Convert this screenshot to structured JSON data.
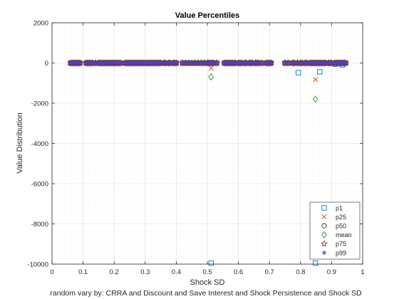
{
  "chart_data": {
    "type": "scatter",
    "title": "Value Percentiles",
    "xlabel": "Shock SD",
    "ylabel": "Value Distribution",
    "caption": "random vary by: CRRA and Discount and Save Interest and Shock Persistence and Shock SD",
    "xlim": [
      0,
      1
    ],
    "ylim": [
      -10000,
      2000
    ],
    "xticks": [
      0,
      0.1,
      0.2,
      0.3,
      0.4,
      0.5,
      0.6,
      0.7,
      0.8,
      0.9,
      1
    ],
    "xtick_labels": [
      "0",
      "0.1",
      "0.2",
      "0.3",
      "0.4",
      "0.5",
      "0.6",
      "0.7",
      "0.8",
      "0.9",
      "1"
    ],
    "yticks": [
      -10000,
      -8000,
      -6000,
      -4000,
      -2000,
      0,
      2000
    ],
    "ytick_labels": [
      "-10000",
      "-8000",
      "-6000",
      "-4000",
      "-2000",
      "0",
      "2000"
    ],
    "grid": "on",
    "legend_position": "bottom-right",
    "x": [
      0.06,
      0.065,
      0.07,
      0.075,
      0.08,
      0.085,
      0.09,
      0.11,
      0.115,
      0.12,
      0.125,
      0.13,
      0.14,
      0.15,
      0.155,
      0.16,
      0.165,
      0.17,
      0.175,
      0.18,
      0.185,
      0.19,
      0.195,
      0.2,
      0.205,
      0.21,
      0.215,
      0.22,
      0.235,
      0.24,
      0.245,
      0.25,
      0.255,
      0.26,
      0.265,
      0.27,
      0.275,
      0.28,
      0.285,
      0.29,
      0.295,
      0.3,
      0.305,
      0.31,
      0.315,
      0.32,
      0.325,
      0.33,
      0.335,
      0.34,
      0.345,
      0.35,
      0.36,
      0.365,
      0.375,
      0.38,
      0.39,
      0.395,
      0.4,
      0.42,
      0.43,
      0.44,
      0.45,
      0.46,
      0.47,
      0.48,
      0.49,
      0.5,
      0.505,
      0.51,
      0.515,
      0.52,
      0.53,
      0.555,
      0.56,
      0.565,
      0.57,
      0.575,
      0.58,
      0.585,
      0.59,
      0.6,
      0.605,
      0.61,
      0.62,
      0.625,
      0.635,
      0.64,
      0.645,
      0.655,
      0.66,
      0.665,
      0.675,
      0.69,
      0.695,
      0.7,
      0.705,
      0.75,
      0.76,
      0.775,
      0.78,
      0.79,
      0.8,
      0.805,
      0.815,
      0.82,
      0.83,
      0.835,
      0.84,
      0.845,
      0.85,
      0.855,
      0.86,
      0.865,
      0.87,
      0.875,
      0.88,
      0.89,
      0.895,
      0.9,
      0.91,
      0.915,
      0.92,
      0.925,
      0.93,
      0.935,
      0.94,
      0.945
    ],
    "series": [
      {
        "name": "p1",
        "marker": "square",
        "color": "#0072BD",
        "overrides": [
          [
            0.512,
            -9950
          ],
          [
            0.793,
            -480
          ],
          [
            0.848,
            -9950
          ],
          [
            0.862,
            -440
          ],
          [
            0.912,
            -60
          ],
          [
            0.935,
            -90
          ]
        ]
      },
      {
        "name": "p25",
        "marker": "x",
        "color": "#D95319",
        "overrides": [
          [
            0.512,
            -260
          ],
          [
            0.848,
            -820
          ]
        ]
      },
      {
        "name": "p50",
        "marker": "circle",
        "color": "#303030",
        "overrides": []
      },
      {
        "name": "mean",
        "marker": "diamond",
        "color": "#2E8B2E",
        "overrides": [
          [
            0.512,
            -690
          ],
          [
            0.848,
            -1800
          ]
        ]
      },
      {
        "name": "p75",
        "marker": "star",
        "color": "#A2142F",
        "overrides": []
      },
      {
        "name": "p99",
        "marker": "asterisk",
        "color": "#4B3FD9",
        "overrides": []
      }
    ]
  }
}
